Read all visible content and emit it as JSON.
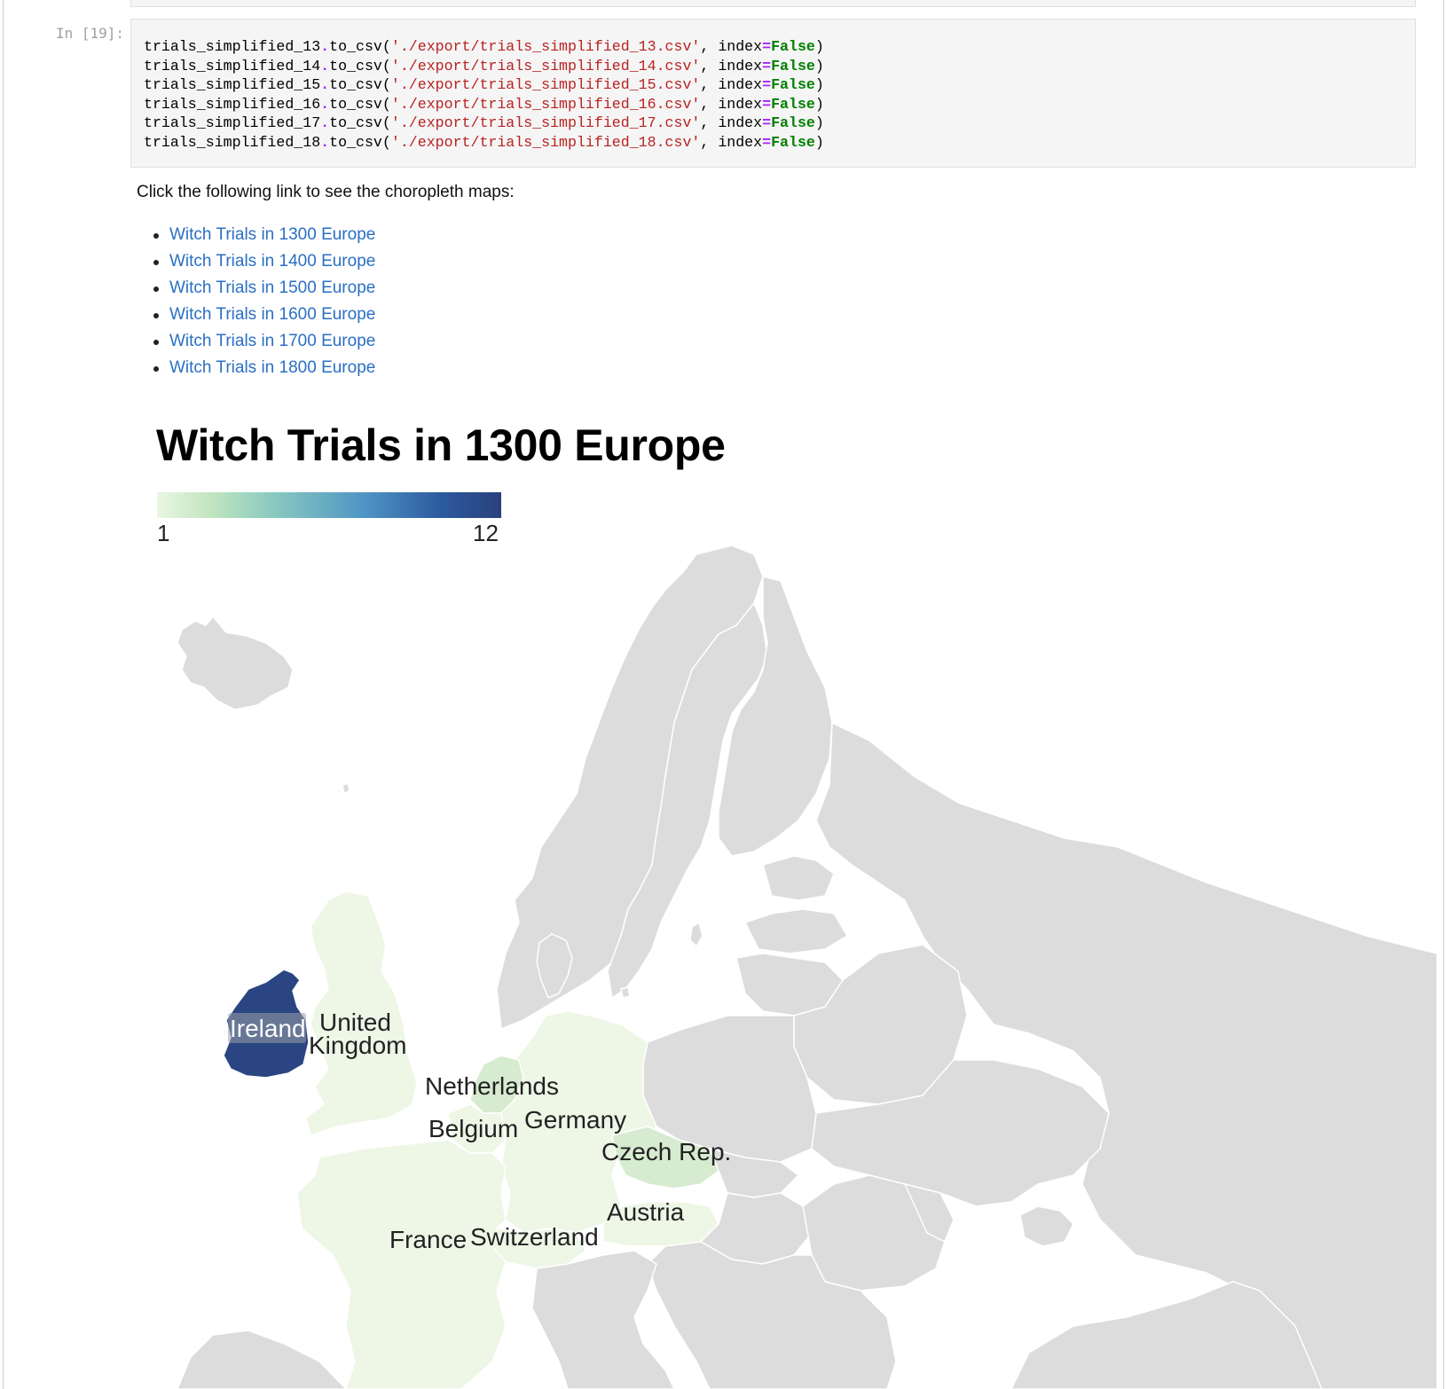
{
  "notebook": {
    "prompt": "In [19]:",
    "code_lines": [
      {
        "var": "trials_simplified_13",
        "method": "to_csv",
        "path": "'./export/trials_simplified_13.csv'",
        "arg": "index",
        "value": "False"
      },
      {
        "var": "trials_simplified_14",
        "method": "to_csv",
        "path": "'./export/trials_simplified_14.csv'",
        "arg": "index",
        "value": "False"
      },
      {
        "var": "trials_simplified_15",
        "method": "to_csv",
        "path": "'./export/trials_simplified_15.csv'",
        "arg": "index",
        "value": "False"
      },
      {
        "var": "trials_simplified_16",
        "method": "to_csv",
        "path": "'./export/trials_simplified_16.csv'",
        "arg": "index",
        "value": "False"
      },
      {
        "var": "trials_simplified_17",
        "method": "to_csv",
        "path": "'./export/trials_simplified_17.csv'",
        "arg": "index",
        "value": "False"
      },
      {
        "var": "trials_simplified_18",
        "method": "to_csv",
        "path": "'./export/trials_simplified_18.csv'",
        "arg": "index",
        "value": "False"
      }
    ]
  },
  "markdown": {
    "intro": "Click the following link to see the choropleth maps:",
    "links": [
      "Witch Trials in 1300 Europe",
      "Witch Trials in 1400 Europe",
      "Witch Trials in 1500 Europe",
      "Witch Trials in 1600 Europe",
      "Witch Trials in 1700 Europe",
      "Witch Trials in 1800 Europe"
    ]
  },
  "map": {
    "title": "Witch Trials in 1300 Europe",
    "legend": {
      "min": "1",
      "max": "12"
    },
    "colors": {
      "no_data": "#dcdcdc",
      "low": "#eef6e6",
      "mid_low": "#d6ebcf",
      "high": "#2a4582",
      "border": "#ffffff"
    },
    "labels": {
      "ireland": "Ireland",
      "uk_line1": "United",
      "uk_line2": "Kingdom",
      "netherlands": "Netherlands",
      "belgium": "Belgium",
      "germany": "Germany",
      "czech": "Czech Rep.",
      "austria": "Austria",
      "france": "France",
      "switzerland": "Switzerland"
    }
  }
}
